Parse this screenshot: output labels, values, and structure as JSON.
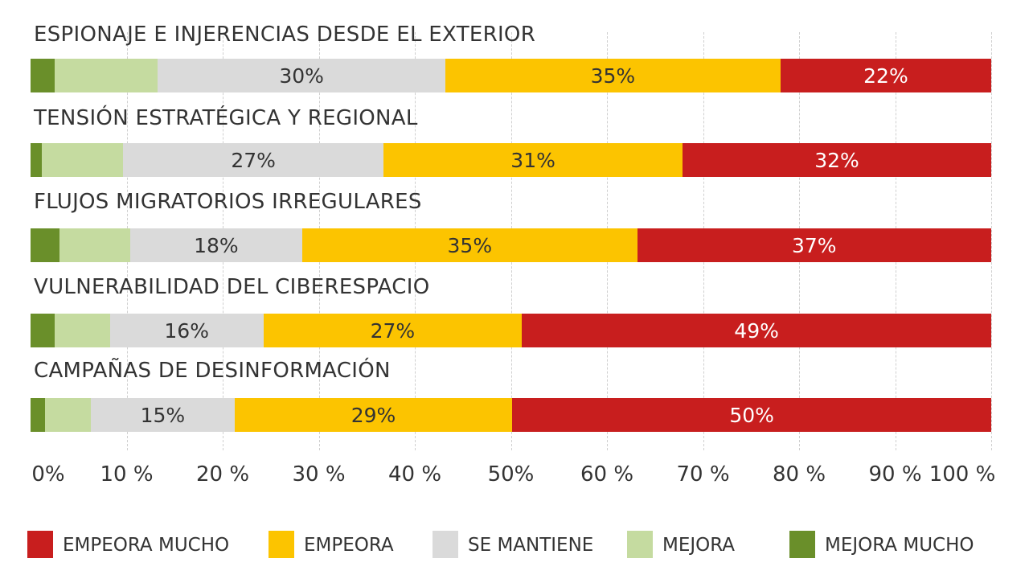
{
  "chart_data": {
    "type": "bar",
    "orientation": "horizontal",
    "stacked": true,
    "categories": [
      "ESPIONAJE E INJERENCIAS DESDE EL EXTERIOR",
      "TENSIÓN ESTRATÉGICA Y REGIONAL",
      "FLUJOS MIGRATORIOS IRREGULARES",
      "VULNERABILIDAD DEL CIBERESPACIO",
      "CAMPAÑAS DE DESINFORMACIÓN"
    ],
    "series": [
      {
        "name": "MEJORA MUCHO",
        "color": "#6a8f2a",
        "values": [
          2.5,
          1.2,
          3,
          2.5,
          1.5
        ],
        "labels": [
          "",
          "",
          "",
          "",
          ""
        ]
      },
      {
        "name": "MEJORA",
        "color": "#c5dba0",
        "values": [
          10.8,
          8.4,
          7.4,
          5.8,
          4.8
        ],
        "labels": [
          "",
          "",
          "",
          "",
          ""
        ]
      },
      {
        "name": "SE MANTIENE",
        "color": "#dadada",
        "values": [
          30,
          27,
          18,
          16,
          15
        ],
        "labels": [
          "30%",
          "27%",
          "18%",
          "16%",
          "15%"
        ]
      },
      {
        "name": "EMPEORA",
        "color": "#fcc400",
        "values": [
          35,
          31,
          35,
          27,
          29
        ],
        "labels": [
          "35%",
          "31%",
          "35%",
          "27%",
          "29%"
        ]
      },
      {
        "name": "EMPEORA MUCHO",
        "color": "#c81e1e",
        "values": [
          22,
          32,
          37,
          49,
          50
        ],
        "labels": [
          "22%",
          "32%",
          "37%",
          "49%",
          "50%"
        ]
      }
    ],
    "legend_order": [
      "EMPEORA MUCHO",
      "EMPEORA",
      "SE MANTIENE",
      "MEJORA",
      "MEJORA MUCHO"
    ],
    "xticks": [
      "0%",
      "10 %",
      "20 %",
      "30 %",
      "40 %",
      "50%",
      "60 %",
      "70 %",
      "80 %",
      "90 %",
      "100 %"
    ],
    "xlim": [
      0,
      100
    ],
    "grid": true,
    "legend_position": "bottom"
  }
}
